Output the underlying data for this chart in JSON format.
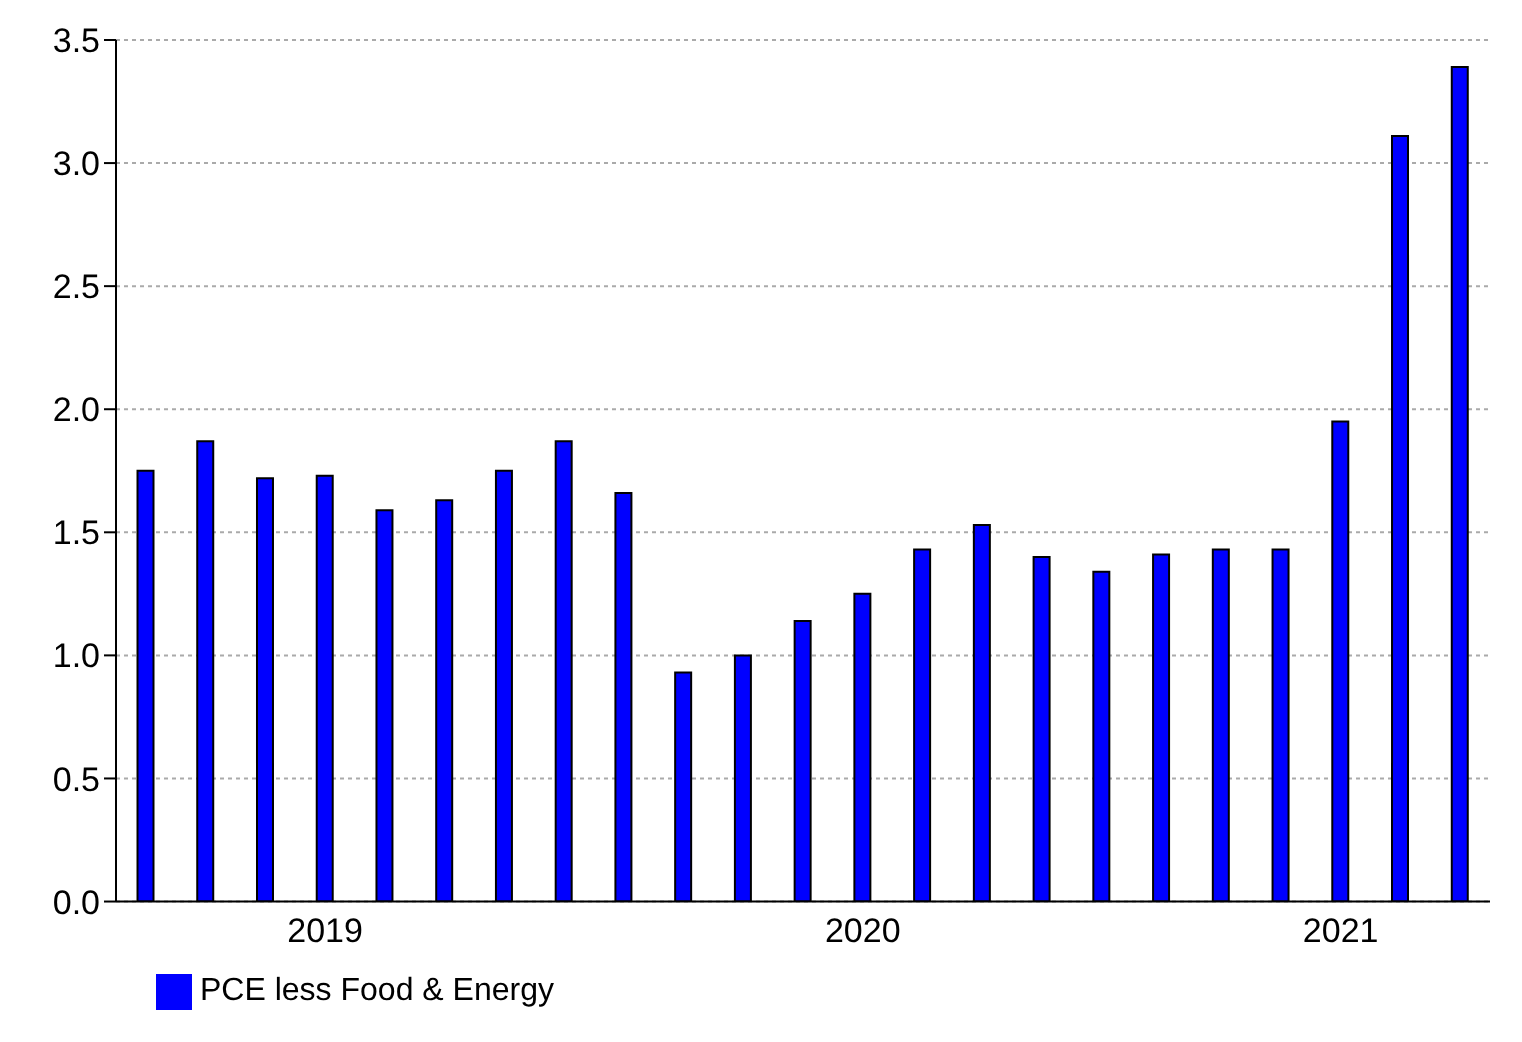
{
  "chart_data": {
    "type": "bar",
    "categories": [
      null,
      null,
      null,
      "2019",
      null,
      null,
      null,
      null,
      null,
      null,
      null,
      null,
      "2020",
      null,
      null,
      null,
      null,
      null,
      null,
      null,
      "2021",
      null,
      null
    ],
    "series": [
      {
        "name": "PCE less Food & Energy",
        "color": "#0000ff",
        "values": [
          1.75,
          1.87,
          1.72,
          1.73,
          1.59,
          1.63,
          1.75,
          1.87,
          1.66,
          0.93,
          1.0,
          1.14,
          1.25,
          1.43,
          1.53,
          1.4,
          1.34,
          1.41,
          1.43,
          1.43,
          1.95,
          3.11,
          3.39
        ]
      }
    ],
    "ylim": [
      0,
      3.5
    ],
    "yticks": [
      {
        "value": 0,
        "label": "0.0"
      },
      {
        "value": 0.5,
        "label": "0.5"
      },
      {
        "value": 1,
        "label": "1.0"
      },
      {
        "value": 1.5,
        "label": "1.5"
      },
      {
        "value": 2,
        "label": "2.0"
      },
      {
        "value": 2.5,
        "label": "2.5"
      },
      {
        "value": 3,
        "label": "3.0"
      },
      {
        "value": 3.5,
        "label": "3.5"
      }
    ],
    "grid": "y",
    "legend": "bottom left"
  }
}
